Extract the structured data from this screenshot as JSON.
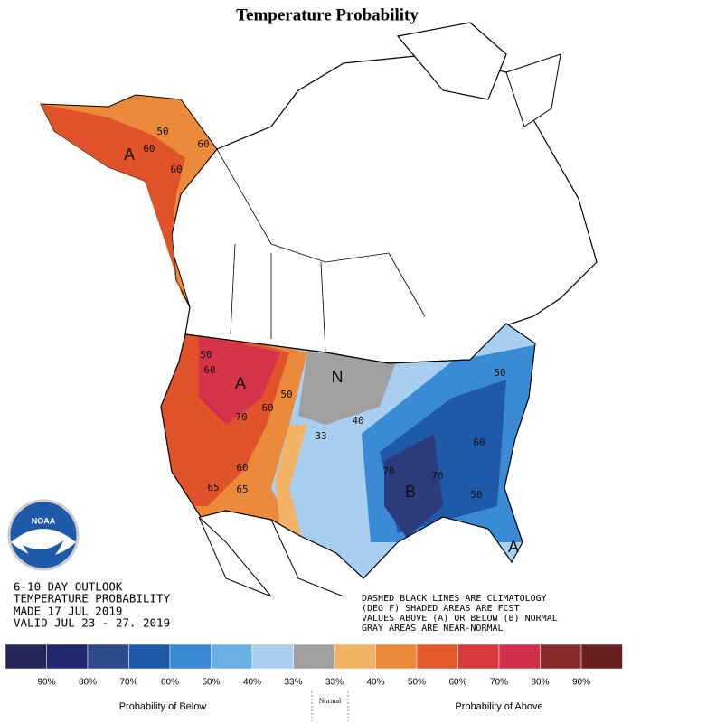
{
  "title": "Temperature Probability",
  "outlook": [
    "6-10 DAY OUTLOOK",
    "TEMPERATURE PROBABILITY",
    "MADE  17 JUL 2019",
    "VALID  JUL 23 - 27. 2019"
  ],
  "notes": [
    "DASHED BLACK LINES ARE CLIMATOLOGY",
    "(DEG F) SHADED AREAS ARE FCST",
    "VALUES ABOVE (A) OR BELOW (B) NORMAL",
    "GRAY AREAS ARE NEAR-NORMAL"
  ],
  "logo": "NOAA",
  "map_labels": [
    "A",
    "50",
    "60",
    "60",
    "60",
    "50",
    "60",
    "A",
    "70",
    "60",
    "50",
    "N",
    "33",
    "40",
    "70",
    "B",
    "70",
    "60",
    "50",
    "50",
    "A",
    "60",
    "65",
    "65"
  ],
  "legend": {
    "below": [
      {
        "color": "#262658",
        "label": "90%"
      },
      {
        "color": "#23286e",
        "label": "80%"
      },
      {
        "color": "#2d4a8c",
        "label": "70%"
      },
      {
        "color": "#1f5aa8",
        "label": "60%"
      },
      {
        "color": "#3a8ad6",
        "label": "50%"
      },
      {
        "color": "#6ab0e8",
        "label": "40%"
      },
      {
        "color": "#a8cff0",
        "label": "33%"
      }
    ],
    "normal_color": "#a0a0a0",
    "above": [
      {
        "color": "#f2b366",
        "label": "33%"
      },
      {
        "color": "#ec8a3c",
        "label": "40%"
      },
      {
        "color": "#e45a2a",
        "label": "50%"
      },
      {
        "color": "#d63a3a",
        "label": "60%"
      },
      {
        "color": "#d0304a",
        "label": "70%"
      },
      {
        "color": "#8a2a2a",
        "label": "80%"
      },
      {
        "color": "#6a1e1e",
        "label": "90%"
      }
    ],
    "below_label": "Probability of Below",
    "normal_label": "Normal",
    "above_label": "Probability of Above"
  }
}
